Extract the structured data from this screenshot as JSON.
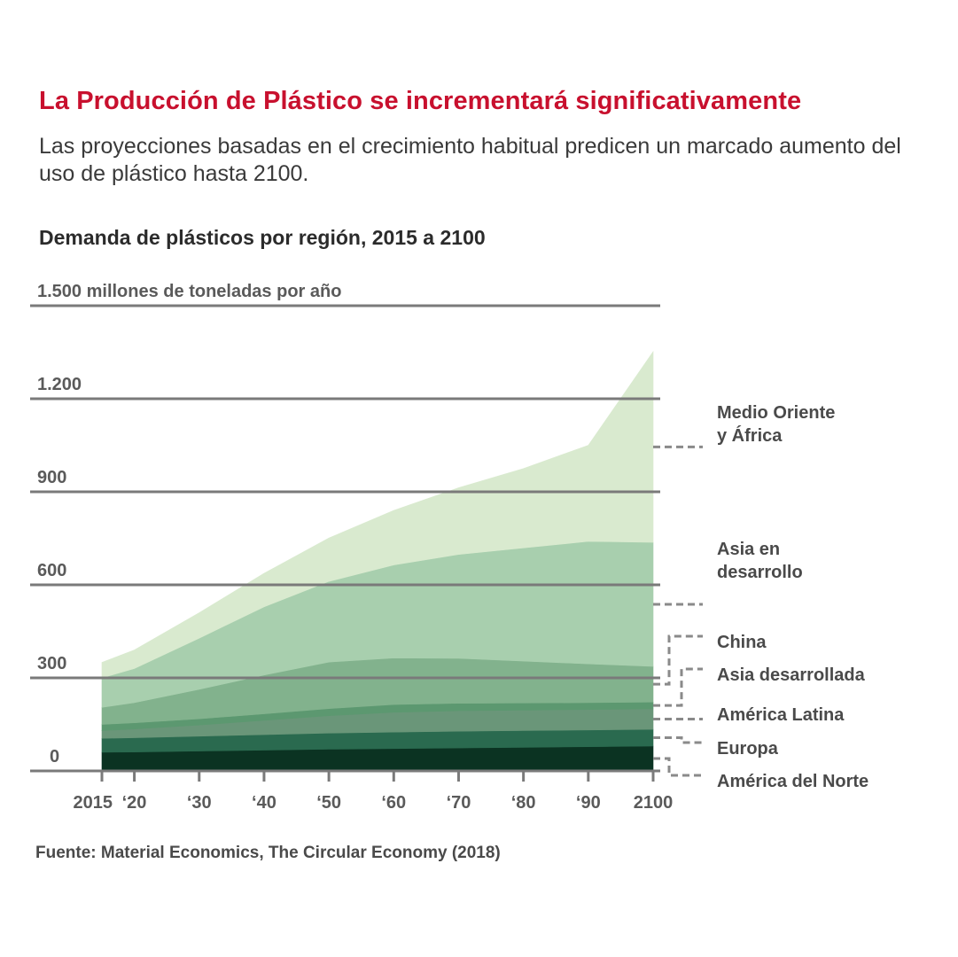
{
  "header": {
    "title": "La Producción de Plástico se incrementará significativamente",
    "subtitle": "Las proyecciones basadas en el crecimiento habitual predicen un marcado aumento del uso de plástico hasta 2100.",
    "chart_title": "Demanda de plásticos por región, 2015 a 2100",
    "source": "Fuente: Material Economics, The Circular Economy (2018)"
  },
  "colors": {
    "title": "#c8102e",
    "grid": "#7a7a7a",
    "leader": "#8a8a8a"
  },
  "chart_data": {
    "type": "area",
    "stacked": true,
    "title": "Demanda de plásticos por región, 2015 a 2100",
    "ylabel": "1.500 millones de toneladas por año",
    "xlabel": "",
    "ylim": [
      0,
      1500
    ],
    "y_ticks": [
      {
        "value": 0,
        "label": "0"
      },
      {
        "value": 300,
        "label": "300"
      },
      {
        "value": 600,
        "label": "600"
      },
      {
        "value": 900,
        "label": "900"
      },
      {
        "value": 1200,
        "label": "1.200"
      },
      {
        "value": 1500,
        "label": "1.500 millones de toneladas por año"
      }
    ],
    "x_ticks": [
      {
        "value": 2015,
        "label": "2015"
      },
      {
        "value": 2020,
        "label": "‘20"
      },
      {
        "value": 2030,
        "label": "‘30"
      },
      {
        "value": 2040,
        "label": "‘40"
      },
      {
        "value": 2050,
        "label": "‘50"
      },
      {
        "value": 2060,
        "label": "‘60"
      },
      {
        "value": 2070,
        "label": "‘70"
      },
      {
        "value": 2080,
        "label": "‘80"
      },
      {
        "value": 2090,
        "label": "‘90"
      },
      {
        "value": 2100,
        "label": "2100"
      }
    ],
    "x": [
      2015,
      2020,
      2030,
      2040,
      2050,
      2060,
      2070,
      2080,
      2090,
      2100
    ],
    "grid": true,
    "legend": "right",
    "series": [
      {
        "name": "América del Norte",
        "color": "#0b3322",
        "values": [
          60,
          61,
          64,
          67,
          70,
          72,
          74,
          76,
          78,
          80
        ]
      },
      {
        "name": "Europa",
        "color": "#2a6a4f",
        "values": [
          45,
          46,
          48,
          50,
          52,
          53,
          54,
          54,
          54,
          54
        ]
      },
      {
        "name": "América Latina",
        "color": "#6a9679",
        "values": [
          25,
          28,
          36,
          46,
          56,
          64,
          66,
          66,
          66,
          66
        ]
      },
      {
        "name": "Asia desarrollada",
        "color": "#5c9870",
        "values": [
          20,
          20,
          20,
          21,
          23,
          25,
          24,
          23,
          22,
          22
        ]
      },
      {
        "name": "China",
        "color": "#82b28d",
        "values": [
          55,
          65,
          95,
          125,
          150,
          150,
          145,
          135,
          125,
          115
        ]
      },
      {
        "name": "Asia en desarrollo",
        "color": "#a8cfae",
        "values": [
          95,
          110,
          165,
          220,
          260,
          300,
          335,
          365,
          395,
          400
        ]
      },
      {
        "name": "Medio Oriente y África",
        "color": "#d9eacf",
        "values": [
          50,
          60,
          82,
          108,
          140,
          176,
          215,
          256,
          310,
          615
        ]
      }
    ]
  },
  "legend": {
    "items": [
      {
        "line1": "Medio Oriente",
        "line2": "y África"
      },
      {
        "line1": "Asia en",
        "line2": "desarrollo"
      },
      {
        "line1": "China"
      },
      {
        "line1": "Asia desarrollada"
      },
      {
        "line1": "América Latina"
      },
      {
        "line1": "Europa"
      },
      {
        "line1": "América del Norte"
      }
    ]
  }
}
